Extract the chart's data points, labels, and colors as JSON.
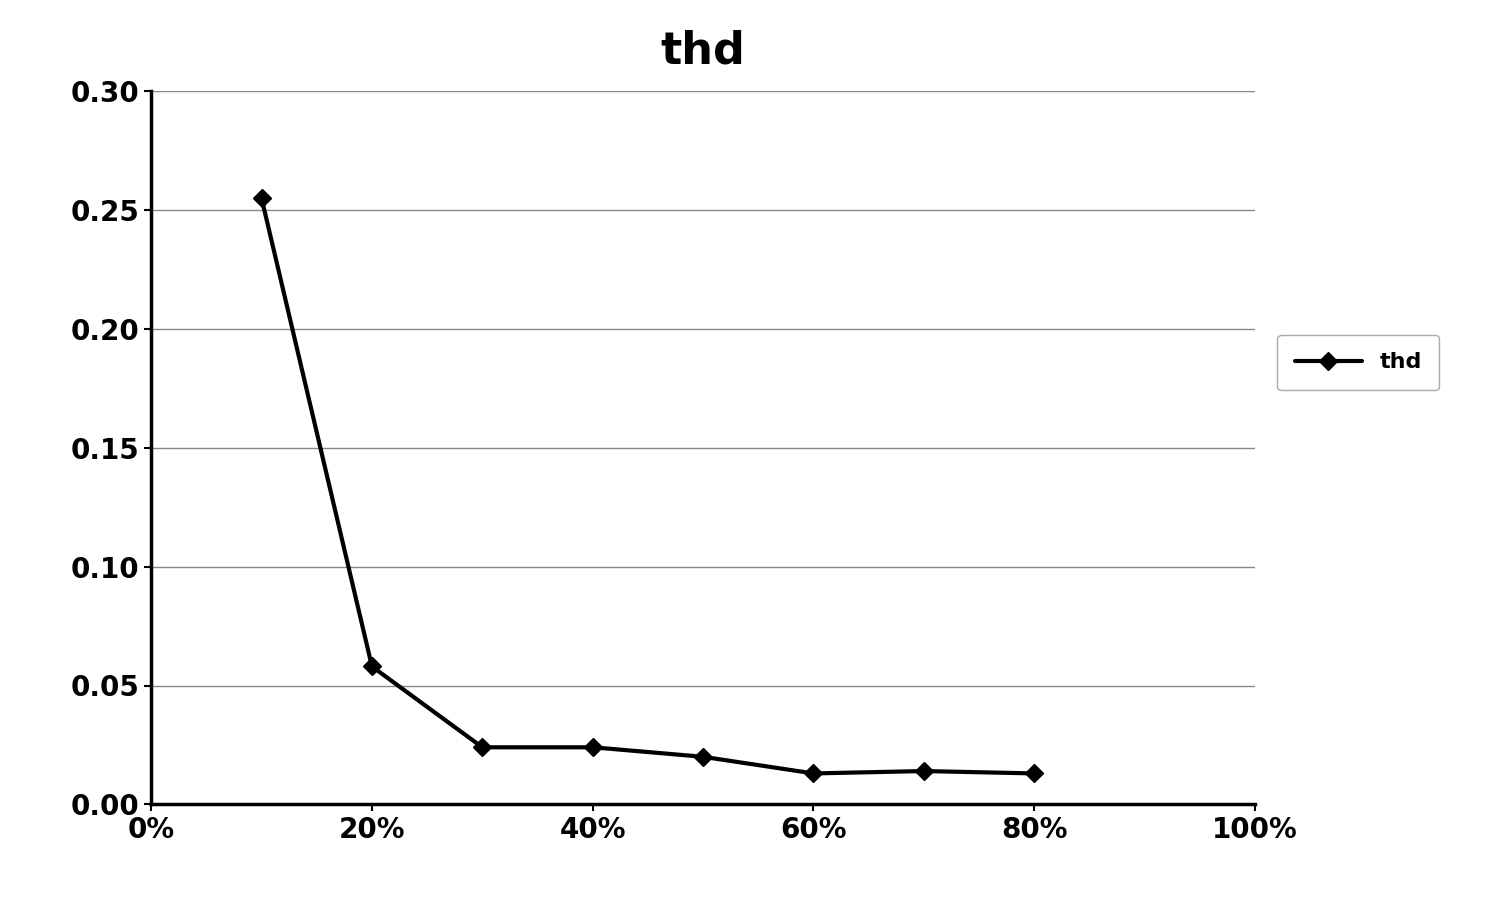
{
  "title": "thd",
  "x_values": [
    0.1,
    0.2,
    0.3,
    0.4,
    0.5,
    0.6,
    0.7,
    0.8
  ],
  "y_values": [
    0.255,
    0.058,
    0.024,
    0.024,
    0.02,
    0.013,
    0.014,
    0.013
  ],
  "xlim": [
    0.0,
    1.0
  ],
  "ylim": [
    0.0,
    0.3
  ],
  "xticks": [
    0.0,
    0.2,
    0.4,
    0.6,
    0.8,
    1.0
  ],
  "yticks": [
    0.0,
    0.05,
    0.1,
    0.15,
    0.2,
    0.25,
    0.3
  ],
  "line_color": "#000000",
  "marker": "D",
  "marker_size": 9,
  "line_width": 3.0,
  "legend_label": "thd",
  "title_fontsize": 32,
  "tick_fontsize": 20,
  "legend_fontsize": 16,
  "background_color": "#ffffff",
  "grid_color": "#888888",
  "grid_linewidth": 1.0,
  "spine_linewidth": 2.5
}
